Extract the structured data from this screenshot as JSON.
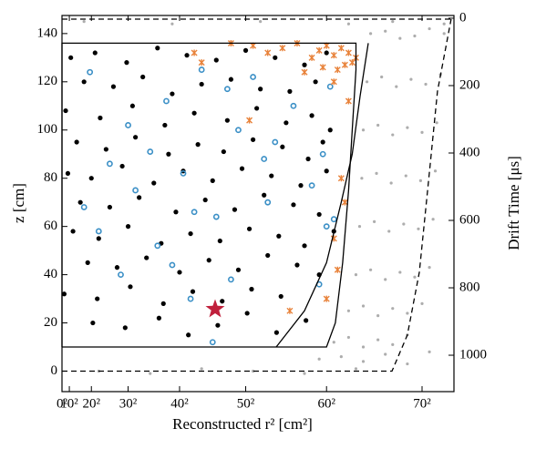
{
  "chart_data": {
    "type": "scatter",
    "xlabel": "Reconstructed r² [cm²]",
    "ylabel": "z [cm]",
    "y2label": "Drift Time [μs]",
    "xlim": [
      0,
      5334
    ],
    "ylim": [
      -8.5,
      147.5
    ],
    "y2lim": [
      1108,
      -8
    ],
    "xticks": [
      {
        "value": 0,
        "label": "0²"
      },
      {
        "value": 100,
        "label": "10²"
      },
      {
        "value": 400,
        "label": "20²"
      },
      {
        "value": 900,
        "label": "30²"
      },
      {
        "value": 1600,
        "label": "40²"
      },
      {
        "value": 2500,
        "label": "50²"
      },
      {
        "value": 3600,
        "label": "60²"
      },
      {
        "value": 4900,
        "label": "70²"
      }
    ],
    "yticks": [
      0,
      20,
      40,
      60,
      80,
      100,
      120,
      140
    ],
    "y2ticks": [
      0,
      200,
      400,
      600,
      800,
      1000
    ],
    "series": [
      {
        "mode": "markers",
        "marker": "dot",
        "color": "#999999",
        "x": [
          4200,
          4400,
          4600,
          4800,
          5000,
          5200,
          4150,
          4350,
          4550,
          4750,
          4950,
          5150,
          4100,
          4300,
          4500,
          4700,
          4900,
          5100,
          4080,
          4280,
          4480,
          4680,
          4880,
          5080,
          4050,
          4250,
          4450,
          4650,
          4850,
          5050,
          4000,
          4200,
          4400,
          4600,
          4800,
          5000,
          3900,
          4100,
          4300,
          4500,
          4700,
          4900,
          3700,
          3900,
          4100,
          4300,
          4500,
          4700,
          3500,
          3800,
          4100,
          4400,
          4700,
          5000,
          500,
          1200,
          1900,
          2600,
          3300,
          4000,
          300,
          1500,
          2700,
          3900,
          4500,
          5200
        ],
        "values": [
          140,
          141,
          138,
          139,
          142,
          140,
          120,
          122,
          118,
          121,
          119,
          123,
          100,
          102,
          98,
          101,
          99,
          103,
          80,
          82,
          78,
          81,
          79,
          83,
          60,
          62,
          58,
          61,
          59,
          63,
          40,
          42,
          38,
          41,
          39,
          43,
          25,
          27,
          23,
          26,
          24,
          28,
          12,
          14,
          10,
          13,
          11,
          15,
          5,
          6,
          4,
          7,
          3,
          8,
          0,
          -1,
          1,
          0,
          -1,
          1,
          145,
          144,
          145,
          144,
          145,
          144
        ]
      },
      {
        "mode": "markers",
        "marker": "circle",
        "color": "#000000",
        "x": [
          120,
          450,
          880,
          1300,
          1700,
          2100,
          2500,
          2900,
          3300,
          3600,
          300,
          700,
          1100,
          1500,
          1900,
          2300,
          2700,
          3100,
          3450,
          50,
          520,
          960,
          1400,
          1800,
          2250,
          2650,
          3050,
          3400,
          3650,
          200,
          600,
          1000,
          1450,
          1850,
          2200,
          2600,
          3000,
          3350,
          3550,
          80,
          400,
          820,
          1250,
          1650,
          2050,
          2450,
          2850,
          3250,
          3600,
          250,
          650,
          1050,
          1550,
          1950,
          2350,
          2750,
          3150,
          3500,
          150,
          500,
          900,
          1350,
          1750,
          2150,
          2550,
          2950,
          3300,
          3700,
          350,
          750,
          1150,
          1600,
          2000,
          2400,
          2800,
          3200,
          3500,
          30,
          480,
          930,
          1380,
          1780,
          2180,
          2580,
          2980,
          420,
          860,
          1320,
          1720,
          2120,
          2520,
          2920,
          3320
        ],
        "values": [
          130,
          132,
          128,
          134,
          131,
          129,
          133,
          130,
          127,
          132,
          120,
          118,
          122,
          115,
          119,
          121,
          117,
          116,
          120,
          108,
          105,
          110,
          102,
          107,
          104,
          109,
          103,
          106,
          100,
          95,
          92,
          97,
          90,
          94,
          91,
          96,
          93,
          88,
          95,
          82,
          80,
          85,
          78,
          83,
          79,
          84,
          81,
          77,
          83,
          70,
          68,
          72,
          66,
          71,
          67,
          73,
          69,
          65,
          58,
          55,
          60,
          53,
          57,
          54,
          59,
          56,
          52,
          58,
          45,
          43,
          47,
          41,
          46,
          42,
          48,
          44,
          40,
          32,
          30,
          35,
          28,
          33,
          29,
          34,
          31,
          20,
          18,
          22,
          15,
          19,
          24,
          16,
          21
        ]
      },
      {
        "mode": "markers",
        "marker": "ring",
        "color": "#3a8fc6",
        "x": [
          380,
          900,
          1420,
          1900,
          2250,
          2600,
          3150,
          3650,
          650,
          1200,
          1650,
          2400,
          2900,
          3550,
          300,
          1000,
          1800,
          2750,
          3400,
          3700,
          500,
          1300,
          2100,
          2800,
          3600,
          800,
          1500,
          2300,
          3500,
          1750,
          2050
        ],
        "values": [
          124,
          102,
          112,
          125,
          117,
          122,
          110,
          118,
          86,
          91,
          82,
          100,
          95,
          90,
          68,
          75,
          66,
          88,
          77,
          63,
          58,
          52,
          64,
          70,
          60,
          40,
          44,
          38,
          36,
          30,
          12
        ]
      },
      {
        "mode": "markers",
        "marker": "cross",
        "color": "#e8823a",
        "x": [
          2300,
          2600,
          2800,
          3000,
          3200,
          3400,
          3500,
          3600,
          3700,
          3800,
          3900,
          4000,
          3750,
          3850,
          3950,
          3300,
          3550,
          3700,
          3900,
          3800,
          3850,
          3700,
          3750,
          3600,
          1800,
          1900,
          2550,
          3100
        ],
        "values": [
          136,
          135,
          132,
          134,
          136,
          130,
          133,
          135,
          131,
          134,
          132,
          130,
          125,
          127,
          128,
          124,
          126,
          120,
          112,
          80,
          70,
          55,
          42,
          30,
          132,
          128,
          104,
          25
        ]
      },
      {
        "mode": "markers",
        "marker": "star",
        "color": "#c0203c",
        "x": [
          2084
        ],
        "values": [
          25.7
        ]
      },
      {
        "mode": "line",
        "dash": false,
        "color": "#000000",
        "x": [
          0,
          3600,
          3720,
          3820,
          3900,
          3950,
          4000,
          4000,
          0,
          0
        ],
        "values": [
          10,
          10,
          20,
          45,
          75,
          100,
          125,
          136,
          136,
          10
        ]
      },
      {
        "mode": "line",
        "dash": false,
        "color": "#000000",
        "x": [
          2915,
          3300,
          3600,
          3800,
          3950,
          4056,
          4168
        ],
        "values": [
          10,
          25,
          45,
          70,
          90,
          114,
          136
        ]
      },
      {
        "mode": "line",
        "dash": true,
        "color": "#000000",
        "x": [
          0,
          5334
        ],
        "values": [
          146,
          146
        ]
      },
      {
        "mode": "line",
        "dash": true,
        "color": "#000000",
        "x": [
          0,
          4491,
          4700,
          4863,
          4986,
          5110,
          5296
        ],
        "values": [
          0,
          0,
          15,
          41,
          78,
          116,
          146
        ]
      }
    ]
  }
}
